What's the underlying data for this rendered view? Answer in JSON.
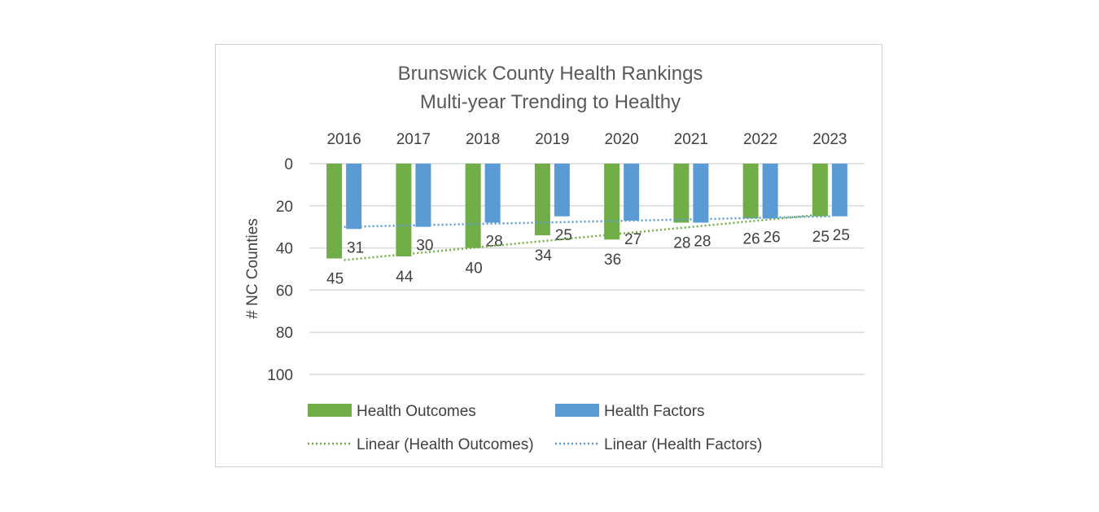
{
  "chart_data": {
    "type": "bar",
    "title_lines": [
      "Brunswick County Health Rankings",
      "Multi-year Trending to Healthy"
    ],
    "ylabel": "# NC Counties",
    "categories": [
      "2016",
      "2017",
      "2018",
      "2019",
      "2020",
      "2021",
      "2022",
      "2023"
    ],
    "ylim": [
      0,
      100
    ],
    "y_ticks": [
      0,
      20,
      40,
      60,
      80,
      100
    ],
    "y_reversed": true,
    "x_axis_position": "top",
    "grid": true,
    "series": [
      {
        "name": "Health Outcomes",
        "color": "#70ad47",
        "values": [
          45,
          44,
          40,
          34,
          36,
          28,
          26,
          25
        ]
      },
      {
        "name": "Health Factors",
        "color": "#5b9bd5",
        "values": [
          31,
          30,
          28,
          25,
          27,
          28,
          26,
          25
        ]
      }
    ],
    "trendlines": [
      {
        "name": "Linear (Health Outcomes)",
        "color": "#70ad47"
      },
      {
        "name": "Linear (Health Factors)",
        "color": "#5b9bd5"
      }
    ],
    "legend_position": "bottom"
  }
}
